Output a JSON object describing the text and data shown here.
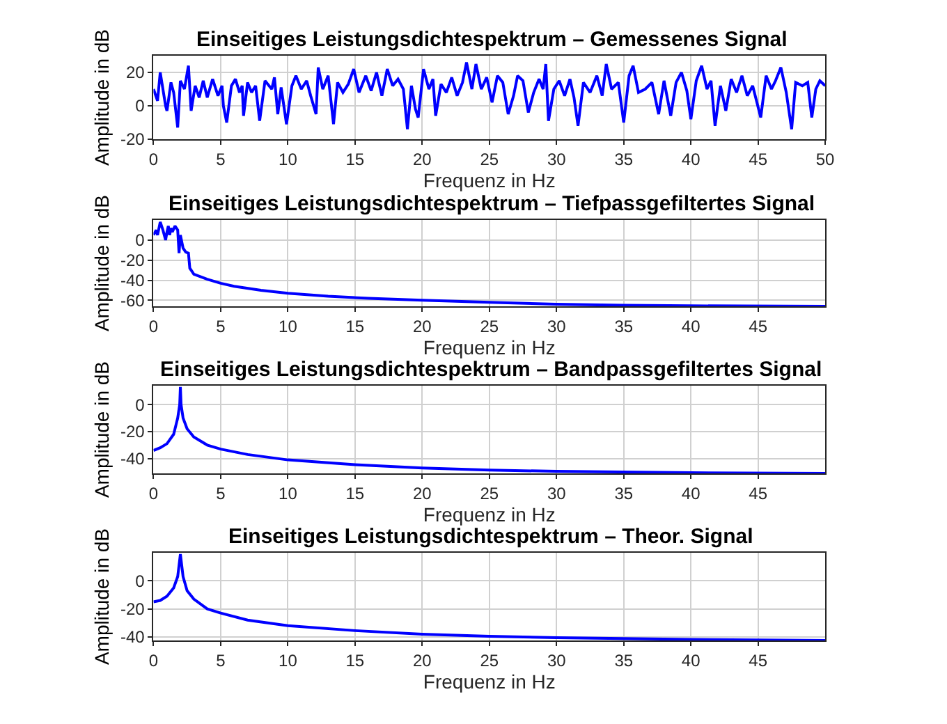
{
  "chart_data": [
    {
      "type": "line",
      "title": "Einseitiges Leistungsdichtespektrum – Gemessenes Signal",
      "xlabel": "Frequenz in Hz",
      "ylabel": "Amplitude in dB",
      "xlim": [
        0,
        50
      ],
      "ylim": [
        -20,
        30
      ],
      "xticks": [
        0,
        5,
        10,
        15,
        20,
        25,
        30,
        35,
        40,
        45,
        50
      ],
      "yticks": [
        -20,
        0,
        20
      ],
      "grid": true,
      "series": [
        {
          "color": "#0000ff",
          "x": [
            0,
            0.3,
            0.5,
            0.9,
            1.0,
            1.3,
            1.5,
            1.8,
            2.0,
            2.3,
            2.6,
            2.8,
            3.1,
            3.4,
            3.7,
            4.0,
            4.4,
            4.8,
            5.1,
            5.2,
            5.45,
            5.8,
            6.1,
            6.4,
            6.6,
            6.7,
            7.0,
            7.3,
            7.6,
            7.9,
            8.3,
            8.8,
            9.0,
            9.25,
            9.5,
            9.9,
            10.3,
            10.6,
            11.0,
            11.4,
            11.7,
            12.1,
            12.26,
            12.6,
            13.0,
            13.4,
            13.7,
            14.1,
            14.5,
            14.9,
            15.3,
            15.8,
            16.2,
            16.6,
            17.0,
            17.4,
            17.8,
            18.2,
            18.6,
            18.9,
            19.2,
            19.5,
            19.7,
            20.1,
            20.5,
            20.8,
            21.0,
            21.4,
            21.8,
            22.2,
            22.6,
            23.0,
            23.3,
            23.7,
            24.0,
            24.4,
            24.8,
            25.2,
            25.6,
            26.0,
            26.4,
            26.8,
            27.1,
            27.5,
            27.9,
            28.3,
            28.7,
            29.0,
            29.2,
            29.4,
            29.8,
            30.2,
            30.6,
            31.0,
            31.3,
            31.6,
            32.0,
            32.5,
            33.0,
            33.4,
            33.7,
            34.1,
            34.6,
            35.0,
            35.4,
            35.7,
            36.1,
            36.6,
            37.1,
            37.6,
            38.0,
            38.5,
            38.9,
            39.3,
            39.7,
            40.0,
            40.4,
            40.8,
            41.2,
            41.5,
            41.8,
            42.2,
            42.6,
            43.0,
            43.4,
            43.8,
            44.2,
            44.6,
            45.2,
            45.6,
            46.0,
            46.3,
            46.7,
            47.1,
            47.5,
            47.8,
            48.3,
            48.7,
            49.0,
            49.3,
            49.6,
            50.0
          ],
          "values": [
            10,
            3,
            20,
            0,
            -3,
            14,
            8,
            -13,
            15,
            10,
            24,
            -3,
            12,
            5,
            15,
            5,
            16,
            6,
            12,
            0,
            -10,
            12,
            16,
            8,
            12,
            -6,
            14,
            8,
            12,
            -9,
            15,
            10,
            17,
            -5,
            11,
            -11,
            12,
            18,
            10,
            15,
            6,
            -5,
            23,
            10,
            18,
            -11,
            14,
            8,
            13,
            22,
            8,
            18,
            9,
            20,
            6,
            22,
            12,
            16,
            10,
            -14,
            12,
            -2,
            -7,
            22,
            10,
            16,
            -6,
            13,
            8,
            17,
            6,
            14,
            26,
            10,
            25,
            10,
            17,
            2,
            18,
            14,
            -5,
            6,
            18,
            15,
            -4,
            8,
            16,
            10,
            25,
            -9,
            10,
            15,
            6,
            16,
            5,
            -12,
            14,
            8,
            18,
            6,
            25,
            10,
            14,
            -10,
            18,
            24,
            8,
            10,
            14,
            -5,
            15,
            -6,
            14,
            20,
            9,
            -8,
            15,
            24,
            10,
            15,
            -12,
            12,
            -3,
            16,
            8,
            18,
            6,
            12,
            -7,
            18,
            10,
            15,
            23,
            8,
            -14,
            14,
            12,
            14,
            -7,
            10,
            15,
            12
          ]
        }
      ]
    },
    {
      "type": "line",
      "title": "Einseitiges Leistungsdichtespektrum – Tiefpassgefiltertes Signal",
      "xlabel": "Frequenz in Hz",
      "ylabel": "Amplitude in dB",
      "xlim": [
        0,
        50
      ],
      "ylim": [
        -66,
        20
      ],
      "xticks": [
        0,
        5,
        10,
        15,
        20,
        25,
        30,
        35,
        40,
        45
      ],
      "yticks": [
        -60,
        -40,
        -20,
        0
      ],
      "grid": true,
      "series": [
        {
          "color": "#0000ff",
          "x": [
            0,
            0.2,
            0.3,
            0.5,
            0.7,
            0.9,
            1.0,
            1.1,
            1.2,
            1.3,
            1.4,
            1.6,
            1.8,
            1.9,
            2.0,
            2.2,
            2.4,
            2.6,
            2.7,
            2.9,
            3,
            4,
            5,
            6,
            8,
            10,
            13,
            16,
            20,
            25,
            30,
            35,
            40,
            50
          ],
          "values": [
            5,
            10,
            5,
            18,
            10,
            0,
            8,
            14,
            5,
            12,
            8,
            14,
            10,
            -13,
            5,
            -8,
            -12,
            -13,
            -28,
            -32,
            -34,
            -39,
            -43,
            -46,
            -50,
            -53,
            -56,
            -58,
            -60,
            -62,
            -64,
            -65,
            -65.5,
            -66
          ]
        }
      ]
    },
    {
      "type": "line",
      "title": "Einseitiges Leistungsdichtespektrum – Bandpassgefiltertes Signal",
      "xlabel": "Frequenz in Hz",
      "ylabel": "Amplitude in dB",
      "xlim": [
        0,
        50
      ],
      "ylim": [
        -51,
        14
      ],
      "xticks": [
        0,
        5,
        10,
        15,
        20,
        25,
        30,
        35,
        40,
        45
      ],
      "yticks": [
        -40,
        -20,
        0
      ],
      "grid": true,
      "series": [
        {
          "color": "#0000ff",
          "x": [
            0,
            0.5,
            1,
            1.5,
            1.8,
            1.95,
            2.0,
            2.05,
            2.2,
            2.5,
            3,
            4,
            5,
            7,
            10,
            15,
            20,
            25,
            30,
            40,
            50
          ],
          "values": [
            -34,
            -32,
            -29,
            -22,
            -10,
            0,
            13,
            0,
            -10,
            -18,
            -24,
            -30,
            -33,
            -37,
            -41,
            -44.5,
            -47,
            -48.5,
            -49.5,
            -50.5,
            -51
          ]
        }
      ]
    },
    {
      "type": "line",
      "title": "Einseitiges Leistungsdichtespektrum – Theor. Signal",
      "xlabel": "Frequenz in Hz",
      "ylabel": "Amplitude in dB",
      "xlim": [
        0,
        50
      ],
      "ylim": [
        -42.5,
        20
      ],
      "xticks": [
        0,
        5,
        10,
        15,
        20,
        25,
        30,
        35,
        40,
        45
      ],
      "yticks": [
        -40,
        -20,
        0
      ],
      "grid": true,
      "series": [
        {
          "color": "#0000ff",
          "x": [
            0,
            0.5,
            1,
            1.5,
            1.8,
            2,
            2.2,
            2.5,
            3,
            4,
            5,
            7,
            10,
            15,
            20,
            25,
            30,
            40,
            50
          ],
          "values": [
            -15,
            -14,
            -11,
            -5,
            3,
            19,
            3,
            -7,
            -13,
            -20,
            -23,
            -28,
            -32,
            -35.5,
            -38,
            -39.5,
            -40.5,
            -41.8,
            -42.5
          ]
        }
      ]
    }
  ]
}
